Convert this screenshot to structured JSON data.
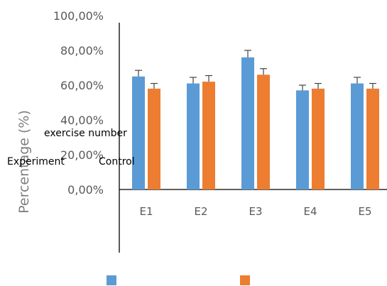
{
  "chart_data": {
    "type": "bar",
    "categories": [
      "E1",
      "E2",
      "E3",
      "E4",
      "E5"
    ],
    "series": [
      {
        "name": "Experiment",
        "color": "#5b9bd5",
        "values": [
          0.65,
          0.61,
          0.76,
          0.57,
          0.61
        ],
        "errors": [
          0.035,
          0.035,
          0.04,
          0.03,
          0.035
        ]
      },
      {
        "name": "Control",
        "color": "#ed7d31",
        "values": [
          0.58,
          0.62,
          0.66,
          0.58,
          0.58
        ],
        "errors": [
          0.03,
          0.035,
          0.035,
          0.03,
          0.03
        ]
      }
    ],
    "yticks": [
      "0,00%",
      "20,00%",
      "40,00%",
      "60,00%",
      "80,00%",
      "100,00%"
    ],
    "ylim": [
      0,
      1
    ],
    "ylabel": "Percentage (%)",
    "xlabel": "exercise number",
    "legend_labels": [
      "Experiment",
      "Control"
    ],
    "grid": false,
    "error_bars": true
  }
}
